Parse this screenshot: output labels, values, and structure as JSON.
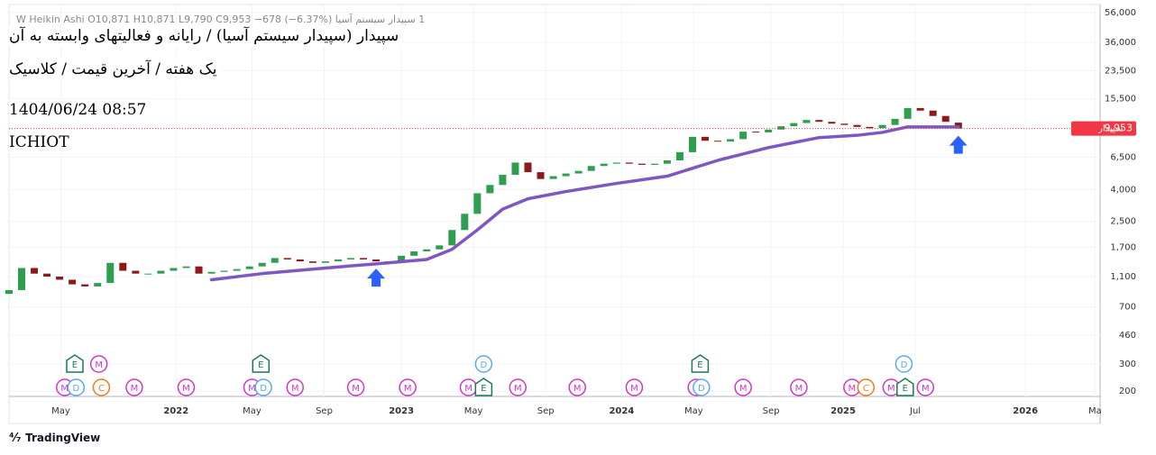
{
  "chart_data": {
    "type": "candlestick",
    "legend": "1 سپیدار سیستم آسیا W Heikin Ashi O10,871 H10,871 L9,790 C9,953 −678 (−6.37%)",
    "title": "سپیدار (سپیدار سیستم آسیا) / رایانه و فعالیتهای وابسته به آن",
    "subtitle": "یک هفته / آخرین قیمت / کلاسیک",
    "timestamp": "1404/06/24 08:57",
    "code": "ICHIOT",
    "log_scale": true,
    "grid": true,
    "up_color": "#2e9e4f",
    "down_color": "#8b1a1a",
    "open": [
      850,
      900,
      1250,
      1150,
      1100,
      1050,
      980,
      950,
      1000,
      1350,
      1200,
      1150,
      1150,
      1200,
      1250,
      1280,
      1150,
      1180,
      1200,
      1230,
      1280,
      1350,
      1450,
      1420,
      1380,
      1350,
      1380,
      1420,
      1450,
      1420,
      1380,
      1350,
      1500,
      1600,
      1650,
      1750,
      2200,
      2800,
      3800,
      4300,
      5000,
      6000,
      5200,
      4700,
      4900,
      5100,
      5300,
      5700,
      5900,
      6000,
      5900,
      5800,
      5900,
      6200,
      7000,
      8800,
      8300,
      8200,
      8500,
      9500,
      9400,
      9800,
      10300,
      10800,
      11300,
      11000,
      10700,
      10500,
      10200,
      10000,
      10500,
      11500,
      13500,
      13000,
      12000,
      10871
    ],
    "close": [
      900,
      1250,
      1150,
      1100,
      1050,
      980,
      950,
      1000,
      1350,
      1200,
      1150,
      1150,
      1200,
      1250,
      1280,
      1150,
      1180,
      1200,
      1230,
      1280,
      1350,
      1450,
      1420,
      1380,
      1350,
      1380,
      1420,
      1450,
      1420,
      1380,
      1350,
      1500,
      1600,
      1650,
      1750,
      2200,
      2800,
      3800,
      4300,
      5000,
      6000,
      5200,
      4700,
      4900,
      5100,
      5300,
      5700,
      5900,
      6000,
      5900,
      5800,
      5900,
      6200,
      7000,
      8800,
      8300,
      8200,
      8500,
      9500,
      9400,
      9800,
      10300,
      10800,
      11300,
      11000,
      10700,
      10500,
      10200,
      10000,
      10500,
      11500,
      13500,
      13000,
      12000,
      11000,
      9953
    ],
    "ma": {
      "color": "#7e57c2",
      "x": [
        16,
        20,
        25,
        29,
        33,
        35,
        37,
        39,
        41,
        44,
        48,
        52,
        56,
        60,
        64,
        67,
        69,
        71,
        75
      ],
      "values": [
        1050,
        1150,
        1250,
        1330,
        1420,
        1650,
        2200,
        3000,
        3500,
        3900,
        4400,
        4900,
        6200,
        7500,
        8700,
        9000,
        9400,
        10200,
        10200
      ]
    },
    "last_price": {
      "value": 9953,
      "label": "9,953",
      "name": "سپیدار",
      "color": "#f23645"
    },
    "arrows": {
      "color": "#2962ff",
      "x": [
        29,
        75
      ]
    },
    "xlim": [
      -0.71,
      86.2
    ],
    "xticks": [
      {
        "value": 4.1,
        "label": "May"
      },
      {
        "value": 13.2,
        "label": "2022"
      },
      {
        "value": 19.2,
        "label": "May"
      },
      {
        "value": 24.9,
        "label": "Sep"
      },
      {
        "value": 31,
        "label": "2023"
      },
      {
        "value": 36.7,
        "label": "May"
      },
      {
        "value": 42.4,
        "label": "Sep"
      },
      {
        "value": 48.4,
        "label": "2024"
      },
      {
        "value": 54.1,
        "label": "May"
      },
      {
        "value": 60.2,
        "label": "Sep"
      },
      {
        "value": 65.9,
        "label": "2025"
      },
      {
        "value": 71.6,
        "label": "Jul"
      },
      {
        "value": 80.3,
        "label": "2026"
      },
      {
        "value": 85.8,
        "label": "Ma"
      }
    ],
    "ylim": [
      185,
      63000
    ],
    "yticks": [
      200,
      300,
      460,
      700,
      {
        "value": 1100,
        "label": "1,100"
      },
      {
        "value": 1700,
        "label": "1,700"
      },
      {
        "value": 2500,
        "label": "2,500"
      },
      {
        "value": 4000,
        "label": "4,000"
      },
      {
        "value": 6500,
        "label": "6,500"
      },
      {
        "value": 15500,
        "label": "15,500"
      },
      {
        "value": 23500,
        "label": "23,500"
      },
      {
        "value": 36000,
        "label": "36,000"
      },
      {
        "value": 56000,
        "label": "56,000"
      }
    ],
    "event_colors": {
      "E": "#1b7a4f",
      "M": "#d633c9",
      "D": "#5aa9f0",
      "C": "#f07b1a"
    },
    "events_upper": [
      {
        "label": "E",
        "x": 5.2
      },
      {
        "label": "M",
        "x": 7.1
      },
      {
        "label": "E",
        "x": 19.9
      },
      {
        "label": "D",
        "x": 37.5
      },
      {
        "label": "E",
        "x": 54.6
      },
      {
        "label": "D",
        "x": 70.7
      }
    ],
    "events_lower": [
      {
        "label": "M",
        "x": 4.4
      },
      {
        "label": "D",
        "x": 5.3
      },
      {
        "label": "C",
        "x": 7.3
      },
      {
        "label": "M",
        "x": 9.9
      },
      {
        "label": "M",
        "x": 14
      },
      {
        "label": "M",
        "x": 19.2
      },
      {
        "label": "D",
        "x": 20.1
      },
      {
        "label": "M",
        "x": 22.6
      },
      {
        "label": "M",
        "x": 27.4
      },
      {
        "label": "M",
        "x": 31.5
      },
      {
        "label": "M",
        "x": 36.3
      },
      {
        "label": "E",
        "x": 37.5
      },
      {
        "label": "M",
        "x": 40.2
      },
      {
        "label": "M",
        "x": 44.9
      },
      {
        "label": "M",
        "x": 49.4
      },
      {
        "label": "M",
        "x": 54.3
      },
      {
        "label": "D",
        "x": 54.7
      },
      {
        "label": "M",
        "x": 58
      },
      {
        "label": "M",
        "x": 62.4
      },
      {
        "label": "M",
        "x": 66.6
      },
      {
        "label": "C",
        "x": 67.7
      },
      {
        "label": "M",
        "x": 69.7
      },
      {
        "label": "E",
        "x": 70.8
      },
      {
        "label": "M",
        "x": 72.4
      }
    ],
    "footer": "TradingView"
  }
}
